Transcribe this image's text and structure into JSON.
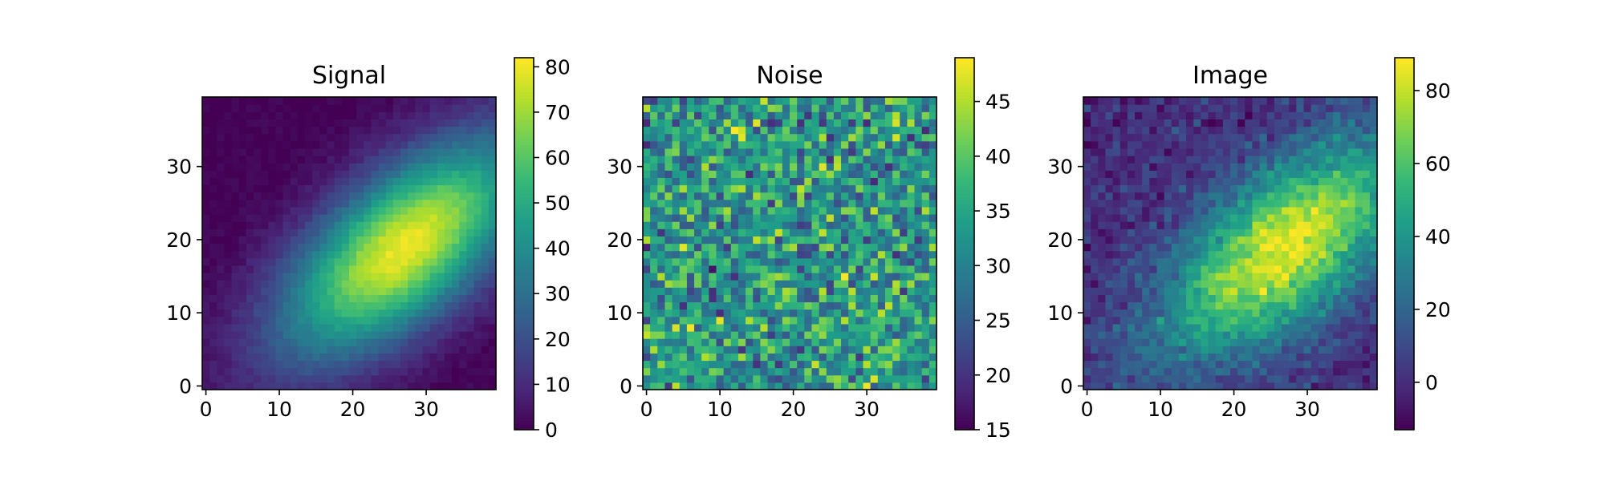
{
  "figure": {
    "background": "#ffffff"
  },
  "colormap": {
    "name": "viridis",
    "stops": [
      "#440154",
      "#482878",
      "#3e4989",
      "#31688e",
      "#26828e",
      "#1f9e89",
      "#35b779",
      "#6ece58",
      "#b5de2b",
      "#fde725"
    ]
  },
  "chart_data": [
    {
      "type": "heatmap",
      "title": "Signal",
      "grid_size": [
        40,
        40
      ],
      "xlim": [
        -0.5,
        39.5
      ],
      "ylim": [
        -0.5,
        39.5
      ],
      "xticks": [
        0,
        10,
        20,
        30
      ],
      "yticks": [
        0,
        10,
        20,
        30
      ],
      "colorbar": {
        "range": [
          0,
          82
        ],
        "ticks": [
          0,
          10,
          20,
          30,
          40,
          50,
          60,
          70,
          80
        ]
      },
      "field": {
        "kind": "gaussian",
        "peak": 80,
        "center": [
          27,
          19
        ],
        "major_sigma": 14,
        "minor_sigma": 6.5,
        "angle_deg": 40,
        "noise_amp": 5,
        "floor": 0
      }
    },
    {
      "type": "heatmap",
      "title": "Noise",
      "grid_size": [
        40,
        40
      ],
      "xlim": [
        -0.5,
        39.5
      ],
      "ylim": [
        -0.5,
        39.5
      ],
      "xticks": [
        0,
        10,
        20,
        30
      ],
      "yticks": [
        0,
        10,
        20,
        30
      ],
      "colorbar": {
        "range": [
          15,
          49
        ],
        "ticks": [
          15,
          20,
          25,
          30,
          35,
          40,
          45
        ]
      },
      "field": {
        "kind": "uniform_noise",
        "mean": 33,
        "spread": 6,
        "min": 15,
        "max": 49
      }
    },
    {
      "type": "heatmap",
      "title": "Image",
      "grid_size": [
        40,
        40
      ],
      "xlim": [
        -0.5,
        39.5
      ],
      "ylim": [
        -0.5,
        39.5
      ],
      "xticks": [
        0,
        10,
        20,
        30
      ],
      "yticks": [
        0,
        10,
        20,
        30
      ],
      "colorbar": {
        "range": [
          -13,
          89
        ],
        "ticks": [
          0,
          20,
          40,
          60,
          80
        ]
      },
      "field": {
        "kind": "signal_minus_noise_mean",
        "offset": -33,
        "peak": 86,
        "noise_amp": 8
      }
    }
  ]
}
